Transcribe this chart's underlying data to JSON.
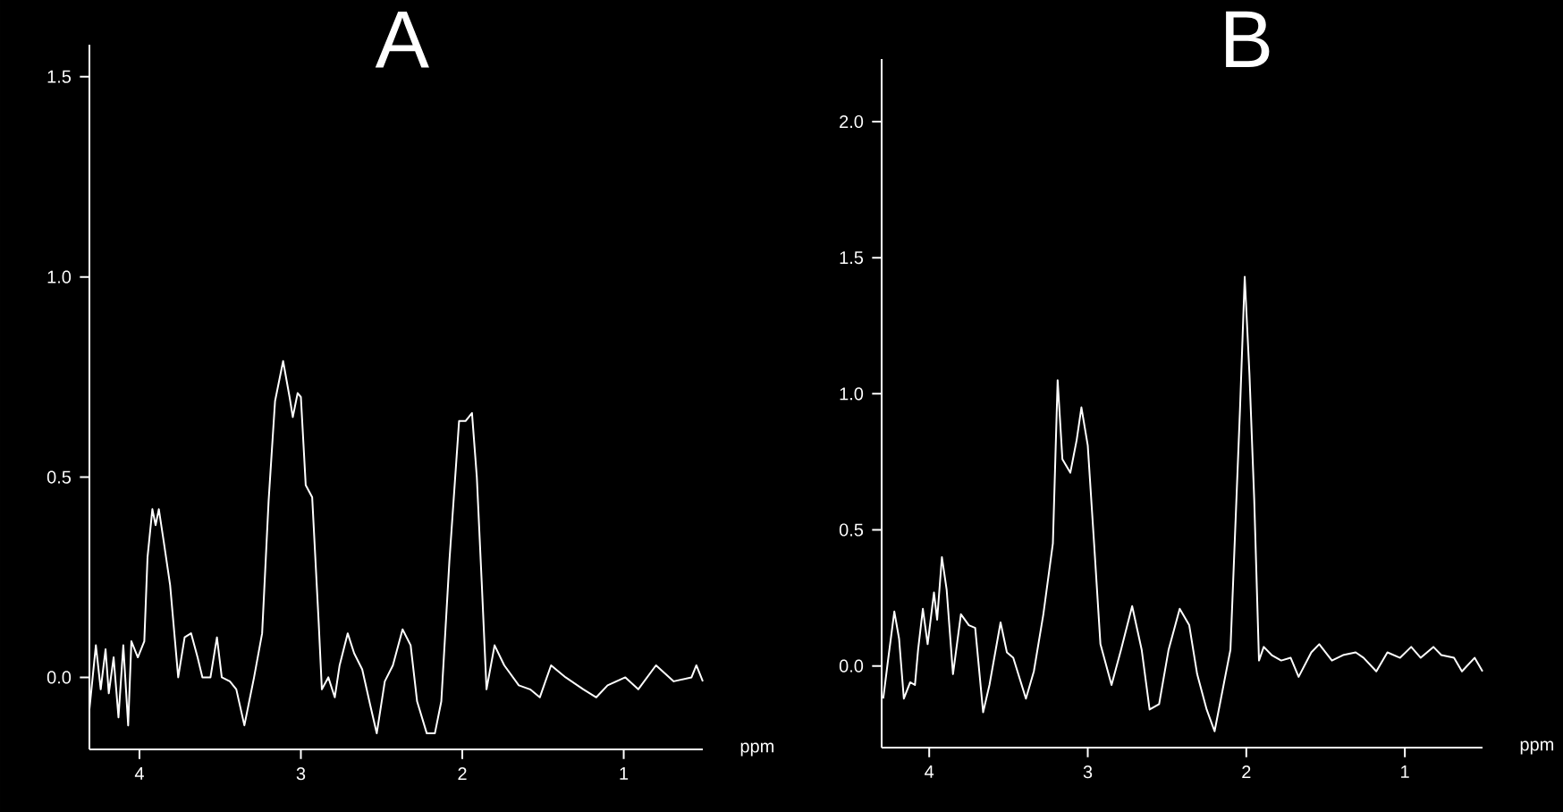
{
  "chart_data": [
    {
      "type": "line",
      "title": "A",
      "xlabel": "ppm",
      "color": "#ffffff",
      "xlim": [
        4.31,
        0.51
      ],
      "ylim": [
        -0.18,
        1.58
      ],
      "xticks": [
        4,
        3,
        2,
        1
      ],
      "yticks": [
        {
          "value": 0,
          "label": "0.0"
        },
        {
          "value": 0.5,
          "label": "0.5"
        },
        {
          "value": 1,
          "label": "1.0"
        },
        {
          "value": 1.5,
          "label": "1.5"
        }
      ],
      "x": [
        4.31,
        4.27,
        4.24,
        4.21,
        4.19,
        4.16,
        4.13,
        4.1,
        4.07,
        4.05,
        4.01,
        3.97,
        3.95,
        3.92,
        3.9,
        3.88,
        3.85,
        3.81,
        3.76,
        3.72,
        3.68,
        3.64,
        3.61,
        3.56,
        3.52,
        3.49,
        3.44,
        3.4,
        3.35,
        3.29,
        3.24,
        3.2,
        3.16,
        3.11,
        3.07,
        3.05,
        3.02,
        3.0,
        2.97,
        2.93,
        2.89,
        2.87,
        2.83,
        2.79,
        2.76,
        2.71,
        2.67,
        2.62,
        2.57,
        2.53,
        2.48,
        2.43,
        2.37,
        2.32,
        2.28,
        2.22,
        2.17,
        2.13,
        2.08,
        2.02,
        1.98,
        1.94,
        1.91,
        1.88,
        1.85,
        1.8,
        1.74,
        1.65,
        1.58,
        1.52,
        1.45,
        1.36,
        1.25,
        1.17,
        1.1,
        0.99,
        0.91,
        0.8,
        0.69,
        0.58,
        0.55,
        0.51
      ],
      "values": [
        -0.08,
        0.08,
        -0.03,
        0.07,
        -0.04,
        0.05,
        -0.1,
        0.08,
        -0.12,
        0.09,
        0.05,
        0.09,
        0.3,
        0.42,
        0.38,
        0.42,
        0.34,
        0.23,
        0.0,
        0.1,
        0.11,
        0.05,
        0.0,
        0.0,
        0.1,
        0.0,
        -0.01,
        -0.03,
        -0.12,
        0.0,
        0.11,
        0.44,
        0.69,
        0.79,
        0.7,
        0.65,
        0.71,
        0.7,
        0.48,
        0.45,
        0.14,
        -0.03,
        0.0,
        -0.05,
        0.03,
        0.11,
        0.06,
        0.02,
        -0.07,
        -0.14,
        -0.01,
        0.03,
        0.12,
        0.08,
        -0.06,
        -0.14,
        -0.14,
        -0.06,
        0.29,
        0.64,
        0.64,
        0.66,
        0.5,
        0.24,
        -0.03,
        0.08,
        0.03,
        -0.02,
        -0.03,
        -0.05,
        0.03,
        0.0,
        -0.03,
        -0.05,
        -0.02,
        0.0,
        -0.03,
        0.03,
        -0.01,
        0.0,
        0.03,
        -0.01
      ]
    },
    {
      "type": "line",
      "title": "B",
      "xlabel": "ppm",
      "color": "#ffffff",
      "xlim": [
        4.3,
        0.51
      ],
      "ylim": [
        -0.3,
        2.23
      ],
      "xticks": [
        4,
        3,
        2,
        1
      ],
      "yticks": [
        {
          "value": 0,
          "label": "0.0"
        },
        {
          "value": 0.5,
          "label": "0.5"
        },
        {
          "value": 1,
          "label": "1.0"
        },
        {
          "value": 1.5,
          "label": "1.5"
        },
        {
          "value": 2,
          "label": "2.0"
        }
      ],
      "x": [
        4.29,
        4.26,
        4.22,
        4.19,
        4.16,
        4.12,
        4.09,
        4.07,
        4.04,
        4.01,
        3.97,
        3.95,
        3.92,
        3.89,
        3.85,
        3.8,
        3.75,
        3.71,
        3.66,
        3.62,
        3.55,
        3.51,
        3.47,
        3.39,
        3.34,
        3.28,
        3.22,
        3.19,
        3.16,
        3.11,
        3.07,
        3.04,
        3.0,
        2.96,
        2.92,
        2.85,
        2.79,
        2.72,
        2.66,
        2.61,
        2.55,
        2.49,
        2.42,
        2.36,
        2.31,
        2.25,
        2.2,
        2.16,
        2.1,
        2.04,
        2.01,
        1.98,
        1.95,
        1.92,
        1.89,
        1.84,
        1.78,
        1.72,
        1.67,
        1.59,
        1.54,
        1.46,
        1.39,
        1.31,
        1.26,
        1.18,
        1.11,
        1.03,
        0.96,
        0.9,
        0.82,
        0.77,
        0.69,
        0.64,
        0.56,
        0.51
      ],
      "values": [
        -0.12,
        0.02,
        0.2,
        0.1,
        -0.12,
        -0.06,
        -0.07,
        0.06,
        0.21,
        0.08,
        0.27,
        0.17,
        0.4,
        0.28,
        -0.03,
        0.19,
        0.15,
        0.14,
        -0.17,
        -0.07,
        0.16,
        0.05,
        0.03,
        -0.12,
        -0.02,
        0.19,
        0.45,
        1.05,
        0.76,
        0.71,
        0.83,
        0.95,
        0.81,
        0.45,
        0.08,
        -0.07,
        0.06,
        0.22,
        0.06,
        -0.16,
        -0.14,
        0.06,
        0.21,
        0.15,
        -0.03,
        -0.16,
        -0.24,
        -0.12,
        0.06,
        0.94,
        1.43,
        1.07,
        0.61,
        0.02,
        0.07,
        0.04,
        0.02,
        0.03,
        -0.04,
        0.05,
        0.08,
        0.02,
        0.04,
        0.05,
        0.03,
        -0.02,
        0.05,
        0.03,
        0.07,
        0.03,
        0.07,
        0.04,
        0.03,
        -0.02,
        0.03,
        -0.02
      ]
    }
  ]
}
